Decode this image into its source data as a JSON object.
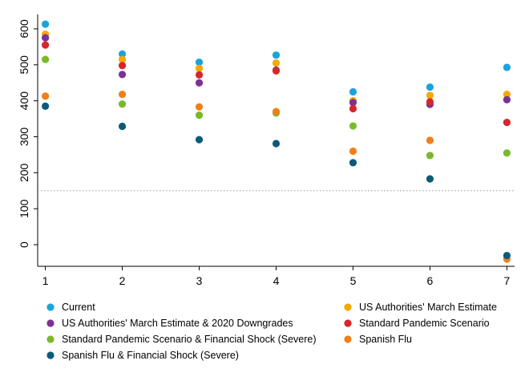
{
  "chart_data": {
    "type": "scatter",
    "title": "",
    "xlabel": "",
    "ylabel": "",
    "xlim": [
      0.9,
      7.1
    ],
    "ylim": [
      -60,
      640
    ],
    "x_ticks": [
      1,
      2,
      3,
      4,
      5,
      6,
      7
    ],
    "y_ticks": [
      0,
      100,
      200,
      300,
      400,
      500,
      600
    ],
    "grid": false,
    "reference_line": {
      "y": 150,
      "style": "dotted",
      "color": "#9a9a9a"
    },
    "legend_position": "bottom",
    "series": [
      {
        "name": "Current",
        "color": "#1aa3dc",
        "values": [
          613,
          530,
          507,
          527,
          425,
          438,
          493
        ]
      },
      {
        "name": "US Authorities' March Estimate",
        "color": "#f5a800",
        "values": [
          585,
          515,
          490,
          505,
          400,
          415,
          418
        ]
      },
      {
        "name": "US Authorities' March Estimate & 2020 Downgrades",
        "color": "#7b3294",
        "values": [
          575,
          473,
          450,
          485,
          395,
          390,
          403
        ]
      },
      {
        "name": "Standard Pandemic Scenario",
        "color": "#d7262b",
        "values": [
          555,
          498,
          472,
          483,
          378,
          397,
          340
        ]
      },
      {
        "name": "Standard Pandemic Scenario & Financial Shock (Severe)",
        "color": "#7ab929",
        "values": [
          515,
          391,
          360,
          366,
          330,
          248,
          255
        ]
      },
      {
        "name": "Spanish Flu",
        "color": "#f07f1a",
        "values": [
          413,
          418,
          383,
          370,
          260,
          290,
          -40
        ]
      },
      {
        "name": "Spanish Flu & Financial Shock (Severe)",
        "color": "#0c5a7a",
        "values": [
          385,
          329,
          292,
          281,
          228,
          183,
          -30
        ]
      }
    ]
  }
}
